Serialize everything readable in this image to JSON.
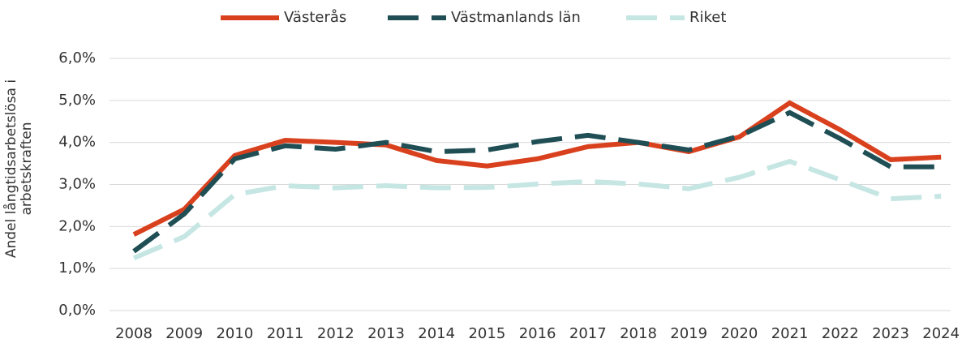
{
  "chart_data": {
    "type": "line",
    "y_label": "Andel långtidsarbetslösa i arbetskraften",
    "categories": [
      "2008",
      "2009",
      "2010",
      "2011",
      "2012",
      "2013",
      "2014",
      "2015",
      "2016",
      "2017",
      "2018",
      "2019",
      "2020",
      "2021",
      "2022",
      "2023",
      "2024"
    ],
    "series": [
      {
        "name": "Västerås",
        "color": "#d9411e",
        "style": "solid",
        "values": [
          1.81,
          2.41,
          3.69,
          4.05,
          4.0,
          3.94,
          3.57,
          3.44,
          3.61,
          3.9,
          4.0,
          3.78,
          4.13,
          4.94,
          4.3,
          3.59,
          3.65
        ]
      },
      {
        "name": "Västmanlands län",
        "color": "#1f4e55",
        "style": "dashed",
        "values": [
          1.41,
          2.3,
          3.61,
          3.92,
          3.84,
          4.0,
          3.78,
          3.82,
          4.02,
          4.17,
          4.0,
          3.82,
          4.15,
          4.71,
          4.09,
          3.42,
          3.42
        ]
      },
      {
        "name": "Riket",
        "color": "#c5e6e3",
        "style": "dashed",
        "values": [
          1.25,
          1.76,
          2.76,
          2.97,
          2.92,
          2.97,
          2.92,
          2.93,
          3.01,
          3.07,
          3.01,
          2.9,
          3.17,
          3.55,
          3.11,
          2.66,
          2.72
        ]
      }
    ],
    "ylim": [
      0,
      6
    ],
    "yticks": [
      {
        "value": 0,
        "label": "0,0%"
      },
      {
        "value": 1,
        "label": "1,0%"
      },
      {
        "value": 2,
        "label": "2,0%"
      },
      {
        "value": 3,
        "label": "3,0%"
      },
      {
        "value": 4,
        "label": "4,0%"
      },
      {
        "value": 5,
        "label": "5,0%"
      },
      {
        "value": 6,
        "label": "6,0%"
      }
    ],
    "grid": true,
    "legend": "top"
  }
}
